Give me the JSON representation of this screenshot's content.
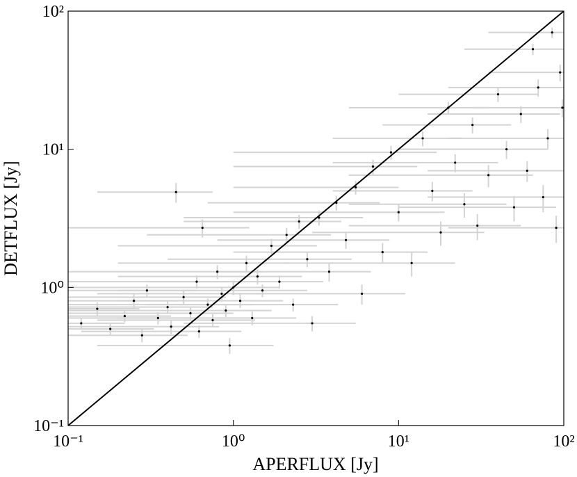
{
  "chart_data": {
    "type": "scatter",
    "x_label": "APERFLUX   [Jy]",
    "y_label": "DETFLUX   [Jy]",
    "xscale": "log",
    "yscale": "log",
    "xlim": [
      0.1,
      100
    ],
    "ylim": [
      0.1,
      100
    ],
    "xticks": [
      {
        "value": 0.1,
        "label": "10⁻¹"
      },
      {
        "value": 1,
        "label": "10⁰"
      },
      {
        "value": 10,
        "label": "10¹"
      },
      {
        "value": 100,
        "label": "10²"
      }
    ],
    "yticks": [
      {
        "value": 0.1,
        "label": "10⁻¹"
      },
      {
        "value": 1,
        "label": "10⁰"
      },
      {
        "value": 10,
        "label": "10¹"
      },
      {
        "value": 100,
        "label": "10²"
      }
    ],
    "color": "#000000",
    "error_color": "#d3d3d3",
    "identity_line": true,
    "x": [
      0.12,
      0.15,
      0.18,
      0.22,
      0.25,
      0.28,
      0.3,
      0.35,
      0.4,
      0.42,
      0.45,
      0.5,
      0.55,
      0.6,
      0.62,
      0.65,
      0.7,
      0.75,
      0.8,
      0.85,
      0.9,
      0.95,
      1.0,
      1.1,
      1.2,
      1.3,
      1.4,
      1.5,
      1.7,
      1.9,
      2.1,
      2.3,
      2.5,
      2.8,
      3.0,
      3.3,
      3.8,
      4.2,
      4.8,
      5.5,
      6,
      7,
      8,
      9,
      10,
      12,
      14,
      16,
      18,
      20,
      22,
      25,
      28,
      30,
      35,
      40,
      45,
      50,
      55,
      60,
      65,
      70,
      75,
      80,
      85,
      90,
      95,
      98
    ],
    "values": [
      0.55,
      0.7,
      0.5,
      0.62,
      0.8,
      0.45,
      0.95,
      0.6,
      0.72,
      0.52,
      4.9,
      0.85,
      0.65,
      1.1,
      0.48,
      2.7,
      0.75,
      0.58,
      1.3,
      0.9,
      0.68,
      0.38,
      1.0,
      0.8,
      1.5,
      0.6,
      1.2,
      0.95,
      2.0,
      1.1,
      2.4,
      0.75,
      3.0,
      1.6,
      0.55,
      3.2,
      1.3,
      4.1,
      2.2,
      5.3,
      0.9,
      7.5,
      1.8,
      9.5,
      3.5,
      1.5,
      12,
      5,
      2.5,
      20,
      8,
      4,
      15,
      2.8,
      6.5,
      25,
      10,
      3.8,
      18,
      7,
      53,
      28,
      4.5,
      12,
      70,
      2.7,
      36,
      20
    ],
    "xerr": [
      0.1,
      0.12,
      0.15,
      0.2,
      0.2,
      0.25,
      0.3,
      0.3,
      0.35,
      0.4,
      0.3,
      0.4,
      0.45,
      0.5,
      0.5,
      0.6,
      0.6,
      0.6,
      0.7,
      0.7,
      0.8,
      0.8,
      0.9,
      0.9,
      1.0,
      1.1,
      1.2,
      1.3,
      1.5,
      1.6,
      1.8,
      2.0,
      2.0,
      2.4,
      2.5,
      2.8,
      3,
      3.5,
      4,
      4.5,
      5,
      6,
      7,
      8,
      9,
      10,
      10,
      12,
      15,
      15,
      18,
      20,
      20,
      25,
      30,
      30,
      35,
      40,
      40,
      45,
      40,
      50,
      60,
      60,
      50,
      70,
      60,
      70
    ],
    "yerr": [
      0.05,
      0.08,
      0.05,
      0.06,
      0.1,
      0.05,
      0.1,
      0.06,
      0.07,
      0.06,
      0.8,
      0.1,
      0.07,
      0.12,
      0.05,
      0.4,
      0.08,
      0.06,
      0.15,
      0.1,
      0.07,
      0.05,
      0.12,
      0.09,
      0.2,
      0.07,
      0.15,
      0.1,
      0.25,
      0.12,
      0.3,
      0.08,
      0.35,
      0.2,
      0.07,
      0.4,
      0.2,
      0.5,
      0.3,
      0.6,
      0.15,
      0.9,
      0.3,
      1.1,
      0.5,
      0.3,
      1.5,
      0.8,
      0.5,
      2,
      1.2,
      0.8,
      2,
      0.6,
      1.2,
      3,
      1.5,
      0.8,
      2.5,
      1.2,
      5,
      4,
      1,
      2,
      6,
      0.6,
      5,
      3
    ]
  }
}
